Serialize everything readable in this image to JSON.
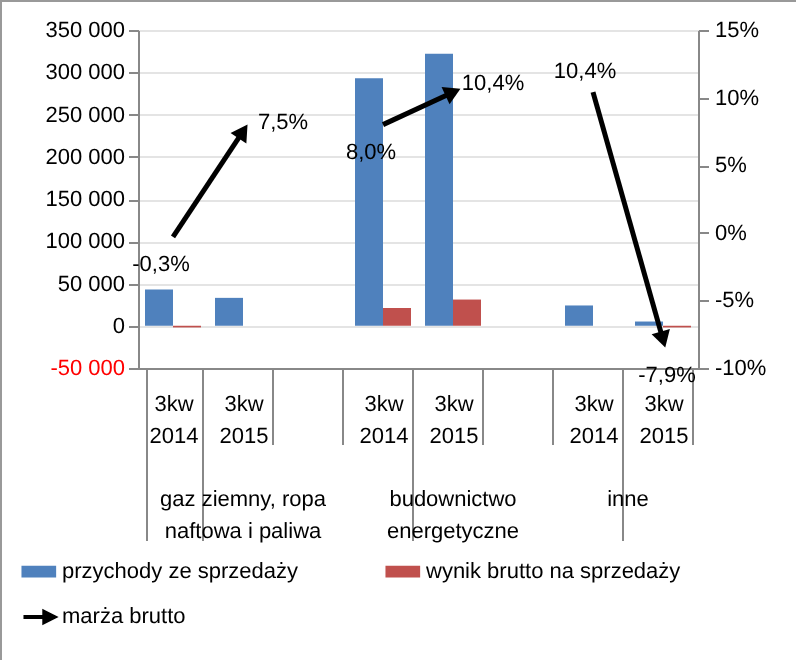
{
  "chart_data": {
    "type": "bar",
    "categories": [
      "3kw 2014",
      "3kw 2015",
      null,
      "3kw 2014",
      "3kw 2015",
      null,
      "3kw 2014",
      "3kw 2015"
    ],
    "annotations": [
      "gaz ziemny, ropa naftowa i paliwa",
      "budownictwo energetyczne",
      "inne"
    ],
    "series": [
      {
        "name": "przychody ze sprzedaży",
        "color": "#4f81bd",
        "values": [
          43000,
          33000,
          null,
          293000,
          322000,
          null,
          24000,
          5000
        ]
      },
      {
        "name": "wynik brutto na sprzedaży",
        "color": "#c0504d",
        "values": [
          -2000,
          0,
          null,
          21000,
          31000,
          null,
          0,
          -2000
        ]
      },
      {
        "name": "marża brutto",
        "type": "line",
        "axis": "y2",
        "color": "#000000",
        "values": [
          -0.3,
          7.5,
          null,
          8.0,
          10.4,
          null,
          10.4,
          -7.9
        ],
        "value_labels": [
          "-0,3%",
          "7,5%",
          null,
          "8,0%",
          "10,4%",
          null,
          "10,4%",
          "-7,9%"
        ]
      }
    ],
    "ylim": [
      -50000,
      350000
    ],
    "yticks": [
      {
        "value": -50000,
        "label": "-50 000"
      },
      0,
      {
        "value": 50000,
        "label": "50 000"
      },
      {
        "value": 100000,
        "label": "100 000"
      },
      {
        "value": 150000,
        "label": "150 000"
      },
      {
        "value": 200000,
        "label": "200 000"
      },
      {
        "value": 250000,
        "label": "250 000"
      },
      {
        "value": 300000,
        "label": "300 000"
      },
      {
        "value": 350000,
        "label": "350 000"
      }
    ],
    "y2lim": [
      -10,
      15
    ],
    "y2ticks": [
      {
        "value": -10,
        "label": "-10%"
      },
      {
        "value": -5,
        "label": "-5%"
      },
      {
        "value": 0,
        "label": "0%"
      },
      {
        "value": 5,
        "label": "5%"
      },
      {
        "value": 10,
        "label": "10%"
      },
      {
        "value": 15,
        "label": "15%"
      }
    ],
    "grid": "y",
    "legend": "bottom",
    "line_style": "solid"
  }
}
